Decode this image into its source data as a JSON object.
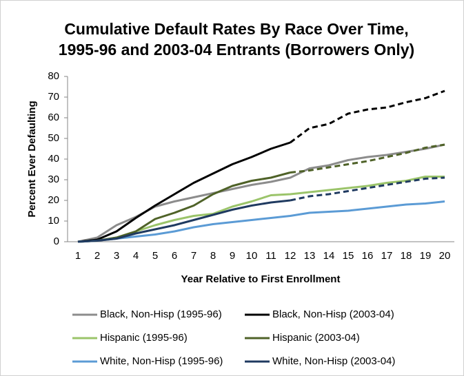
{
  "chart_data": {
    "type": "line",
    "title": [
      "Cumulative Default Rates By Race Over Time,",
      "1995-96 and 2003-04 Entrants (Borrowers Only)"
    ],
    "x_label": "Year Relative to First Enrollment",
    "y_label": "Percent Ever Defaulting",
    "categories": [
      "1",
      "2",
      "3",
      "4",
      "5",
      "6",
      "7",
      "8",
      "9",
      "10",
      "11",
      "12",
      "13",
      "14",
      "15",
      "16",
      "17",
      "18",
      "19",
      "20"
    ],
    "ylim": [
      0,
      80
    ],
    "yticks": [
      0,
      10,
      20,
      30,
      40,
      50,
      60,
      70,
      80
    ],
    "grid": false,
    "series": [
      {
        "name": "Black, Non-Hisp (1995-96)",
        "color": "#8c8c8c",
        "values": [
          0,
          2,
          8,
          12,
          17,
          19.5,
          21.5,
          23.5,
          25.5,
          27.5,
          29,
          31,
          35.5,
          37,
          39.5,
          41,
          42,
          43.5,
          45,
          47
        ]
      },
      {
        "name": "Black, Non-Hisp (2003-04)",
        "color": "#000000",
        "dashed_after": 12,
        "values": [
          0,
          1,
          5,
          11.5,
          17.5,
          23,
          28.5,
          33,
          37.5,
          41,
          45,
          48,
          55,
          57,
          62,
          64,
          65,
          67.5,
          69.5,
          73
        ]
      },
      {
        "name": "Hispanic (1995-96)",
        "color": "#9bc46a",
        "values": [
          0,
          0.5,
          2,
          5,
          8,
          10.5,
          12.5,
          13.5,
          17,
          19.5,
          22.5,
          23,
          24,
          25,
          26,
          27,
          28.5,
          29.5,
          31.5,
          31.5
        ]
      },
      {
        "name": "Hispanic (2003-04)",
        "color": "#4f6228",
        "dashed_after": 12,
        "values": [
          0,
          0.5,
          2,
          5,
          11,
          14,
          17.5,
          23,
          27,
          29.5,
          31,
          33.5,
          34.5,
          36,
          37.5,
          39,
          41,
          43,
          45.5,
          47
        ]
      },
      {
        "name": "White, Non-Hisp (1995-96)",
        "color": "#5b9bd5",
        "values": [
          0,
          0.5,
          1.5,
          2.5,
          3.5,
          5,
          7,
          8.5,
          9.5,
          10.5,
          11.5,
          12.5,
          14,
          14.5,
          15,
          16,
          17,
          18,
          18.5,
          19.5
        ]
      },
      {
        "name": "White, Non-Hisp (2003-04)",
        "color": "#1f3a60",
        "dashed_after": 12,
        "values": [
          0,
          0.5,
          1.5,
          4,
          6,
          8,
          10.5,
          13,
          15.5,
          17.5,
          19,
          20,
          22,
          23,
          24.5,
          26,
          27.5,
          29,
          30.5,
          31
        ]
      }
    ]
  }
}
